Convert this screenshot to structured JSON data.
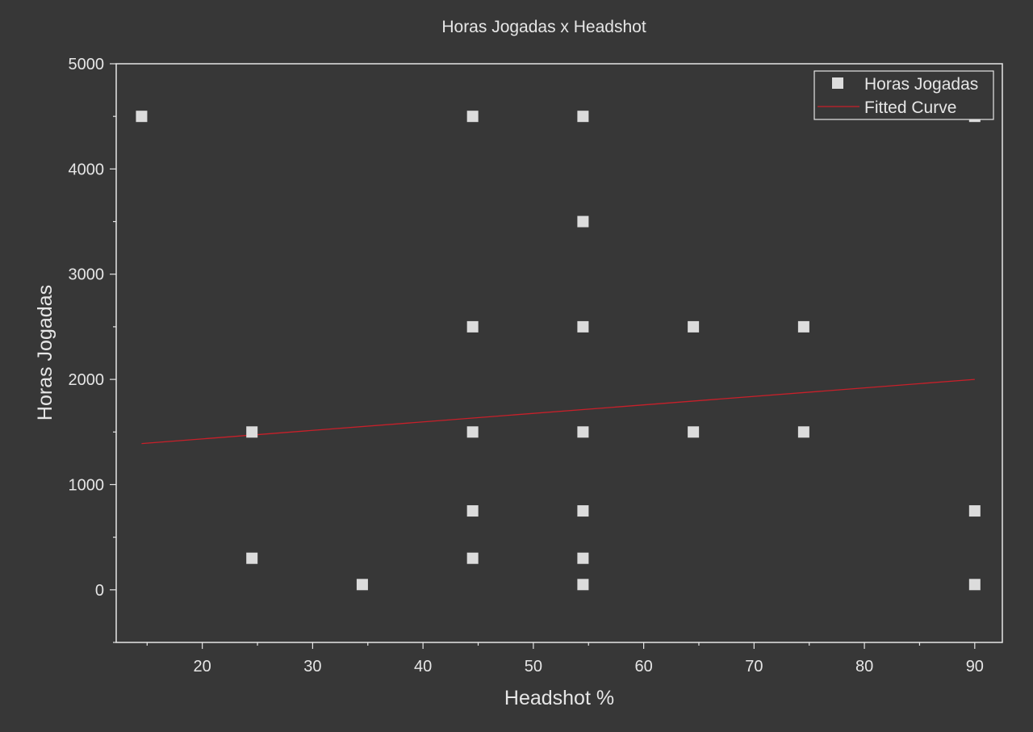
{
  "chart_data": {
    "type": "scatter",
    "title": "Horas Jogadas x Headshot",
    "xlabel": "Headshot %",
    "ylabel": "Horas Jogadas",
    "xlim": [
      12.2,
      92.5
    ],
    "ylim": [
      -500,
      5000
    ],
    "x_ticks": [
      20,
      30,
      40,
      50,
      60,
      70,
      80,
      90
    ],
    "y_ticks": [
      0,
      1000,
      2000,
      3000,
      4000,
      5000
    ],
    "grid": false,
    "legend_position": "top-right",
    "series": [
      {
        "name": "Horas Jogadas",
        "type": "scatter",
        "marker": "square",
        "color": "#dcdcdc",
        "x": [
          14.5,
          24.5,
          24.5,
          34.5,
          44.5,
          44.5,
          44.5,
          44.5,
          44.5,
          54.5,
          54.5,
          54.5,
          54.5,
          54.5,
          54.5,
          54.5,
          64.5,
          64.5,
          74.5,
          74.5,
          90,
          90,
          90
        ],
        "y": [
          4500,
          1500,
          300,
          50,
          4500,
          2500,
          1500,
          750,
          300,
          4500,
          3500,
          2500,
          1500,
          750,
          300,
          50,
          2500,
          1500,
          2500,
          1500,
          4500,
          750,
          50
        ]
      },
      {
        "name": "Fitted Curve",
        "type": "line",
        "color": "#c8202a",
        "x": [
          14.5,
          90
        ],
        "y": [
          1390,
          2000
        ]
      }
    ]
  }
}
